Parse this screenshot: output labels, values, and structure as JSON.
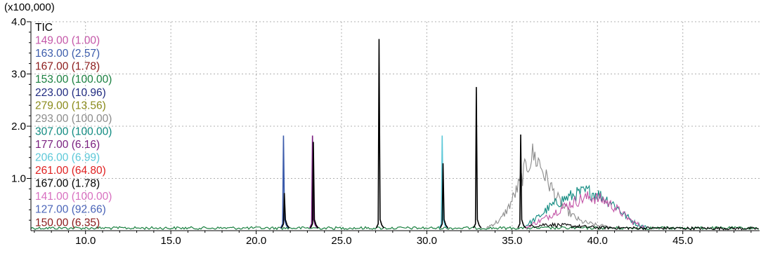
{
  "chart_data": {
    "type": "line",
    "title": "",
    "xlabel": "",
    "ylabel": "",
    "y_multiplier": "(x100,000)",
    "xlim": [
      6.8,
      49.5
    ],
    "ylim": [
      0,
      4.0
    ],
    "grid": true,
    "legend_placement": "top-left",
    "x_ticks": [
      {
        "value": 10,
        "label": "10.0"
      },
      {
        "value": 15,
        "label": "15.0"
      },
      {
        "value": 20,
        "label": "20.0"
      },
      {
        "value": 25,
        "label": "25.0"
      },
      {
        "value": 30,
        "label": "30.0"
      },
      {
        "value": 35,
        "label": "35.0"
      },
      {
        "value": 40,
        "label": "40.0"
      },
      {
        "value": 45,
        "label": "45.0"
      }
    ],
    "y_ticks": [
      {
        "value": 1.0,
        "label": "1.0"
      },
      {
        "value": 2.0,
        "label": "2.0"
      },
      {
        "value": 3.0,
        "label": "3.0"
      },
      {
        "value": 4.0,
        "label": "4.0"
      }
    ],
    "legend": [
      {
        "mz": "TIC",
        "ratio": "",
        "color": "#000000"
      },
      {
        "mz": "149.00",
        "ratio": "(1.00)",
        "color": "#c457a8"
      },
      {
        "mz": "163.00",
        "ratio": "(2.57)",
        "color": "#3b5bab"
      },
      {
        "mz": "167.00",
        "ratio": "(1.78)",
        "color": "#8b1a1a"
      },
      {
        "mz": "153.00",
        "ratio": "(100.00)",
        "color": "#1a8040"
      },
      {
        "mz": "223.00",
        "ratio": "(10.96)",
        "color": "#1f2a80"
      },
      {
        "mz": "279.00",
        "ratio": "(13.56)",
        "color": "#8a8a1a"
      },
      {
        "mz": "293.00",
        "ratio": "(100.00)",
        "color": "#8c8c8c"
      },
      {
        "mz": "307.00",
        "ratio": "(100.00)",
        "color": "#0f8a80"
      },
      {
        "mz": "177.00",
        "ratio": "(6.16)",
        "color": "#7a2080"
      },
      {
        "mz": "206.00",
        "ratio": "(6.99)",
        "color": "#5cc8d8"
      },
      {
        "mz": "261.00",
        "ratio": "(64.80)",
        "color": "#e02020"
      },
      {
        "mz": "167.00",
        "ratio": "(1.78)",
        "color": "#000000"
      },
      {
        "mz": "141.00",
        "ratio": "(100.00)",
        "color": "#d870c0"
      },
      {
        "mz": "127.00",
        "ratio": "(92.66)",
        "color": "#4a64b8"
      },
      {
        "mz": "150.00",
        "ratio": "(6.35)",
        "color": "#8b1a1a"
      }
    ],
    "peaks": [
      {
        "x": 21.6,
        "y": 1.82,
        "color": "#3b5bab"
      },
      {
        "x": 21.65,
        "y": 0.72,
        "color": "#000000"
      },
      {
        "x": 23.3,
        "y": 1.82,
        "color": "#7a2080"
      },
      {
        "x": 23.35,
        "y": 1.7,
        "color": "#000000"
      },
      {
        "x": 27.2,
        "y": 3.67,
        "color": "#000000"
      },
      {
        "x": 30.9,
        "y": 1.82,
        "color": "#5cc8d8"
      },
      {
        "x": 30.95,
        "y": 1.29,
        "color": "#000000"
      },
      {
        "x": 32.9,
        "y": 2.75,
        "color": "#000000"
      },
      {
        "x": 35.5,
        "y": 1.84,
        "color": "#000000"
      }
    ],
    "broad_bands": [
      {
        "name_ref": "293.00",
        "color": "#8c8c8c",
        "points": [
          [
            33.5,
            0.06
          ],
          [
            34.3,
            0.2
          ],
          [
            34.8,
            0.45
          ],
          [
            35.3,
            0.8
          ],
          [
            35.8,
            1.2
          ],
          [
            36.2,
            1.45
          ],
          [
            36.6,
            1.3
          ],
          [
            37.0,
            1.0
          ],
          [
            37.5,
            0.7
          ],
          [
            38.0,
            0.45
          ],
          [
            38.5,
            0.3
          ],
          [
            39.0,
            0.18
          ],
          [
            40.0,
            0.1
          ],
          [
            41.0,
            0.06
          ]
        ]
      },
      {
        "name_ref": "307.00",
        "color": "#0f8a80",
        "points": [
          [
            35.8,
            0.1
          ],
          [
            36.5,
            0.25
          ],
          [
            37.2,
            0.45
          ],
          [
            38.0,
            0.6
          ],
          [
            38.8,
            0.7
          ],
          [
            39.4,
            0.75
          ],
          [
            40.0,
            0.7
          ],
          [
            40.8,
            0.55
          ],
          [
            41.6,
            0.3
          ],
          [
            42.3,
            0.12
          ],
          [
            43.0,
            0.06
          ]
        ]
      },
      {
        "name_ref": "149.00",
        "color": "#c457a8",
        "points": [
          [
            35.8,
            0.06
          ],
          [
            37.0,
            0.25
          ],
          [
            38.0,
            0.45
          ],
          [
            39.0,
            0.6
          ],
          [
            39.6,
            0.65
          ],
          [
            40.4,
            0.58
          ],
          [
            41.2,
            0.4
          ],
          [
            42.0,
            0.18
          ],
          [
            42.8,
            0.06
          ]
        ]
      },
      {
        "name_ref": "TIC",
        "color": "#000000",
        "points": [
          [
            36.0,
            0.08
          ],
          [
            37.0,
            0.12
          ],
          [
            38.0,
            0.1
          ],
          [
            39.0,
            0.08
          ],
          [
            40.0,
            0.06
          ],
          [
            42.0,
            0.05
          ],
          [
            49.5,
            0.04
          ]
        ]
      }
    ],
    "baseline": {
      "y": 0.05,
      "color": "#1a8040"
    }
  }
}
